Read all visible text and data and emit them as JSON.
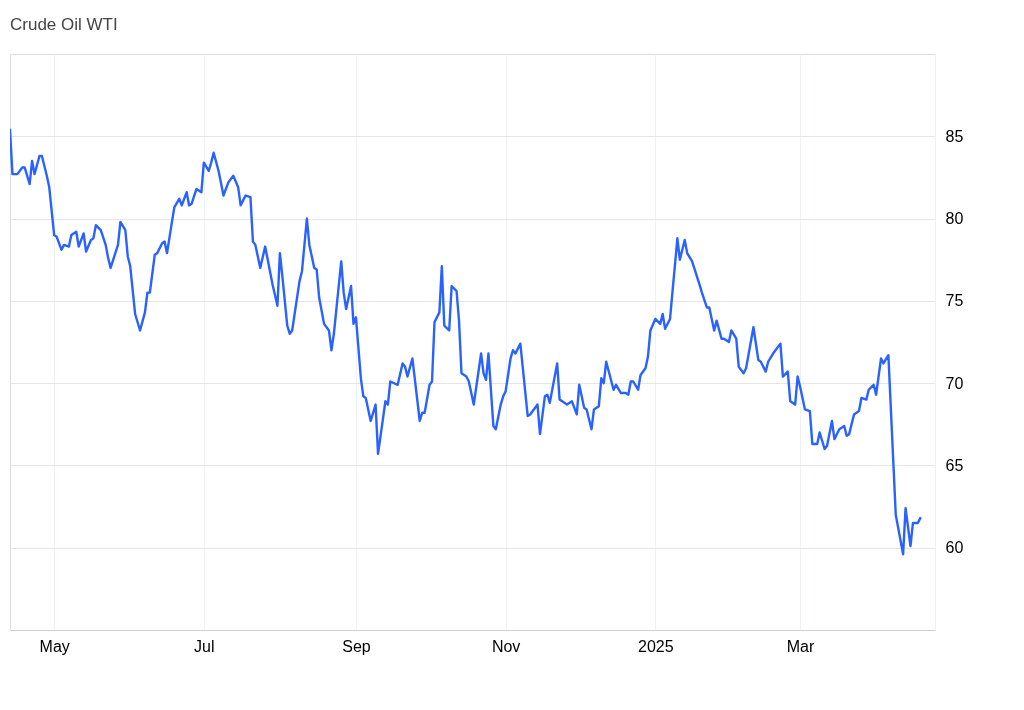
{
  "chart_data": {
    "type": "line",
    "title": "Crude Oil WTI",
    "xlim": [
      "2024-04-13",
      "2025-04-25"
    ],
    "xticks": [
      {
        "value": "2024-05-01",
        "label": "May"
      },
      {
        "value": "2024-07-01",
        "label": "Jul"
      },
      {
        "value": "2024-09-01",
        "label": "Sep"
      },
      {
        "value": "2024-11-01",
        "label": "Nov"
      },
      {
        "value": "2025-01-01",
        "label": "2025"
      },
      {
        "value": "2025-03-01",
        "label": "Mar"
      }
    ],
    "ylim": [
      55,
      90
    ],
    "yticks": [
      60,
      65,
      70,
      75,
      80,
      85
    ],
    "grid": true,
    "legend": false,
    "line_style": "solid",
    "marker": "none",
    "x": [
      "2024-04-13",
      "2024-04-14",
      "2024-04-16",
      "2024-04-18",
      "2024-04-19",
      "2024-04-21",
      "2024-04-22",
      "2024-04-23",
      "2024-04-25",
      "2024-04-26",
      "2024-04-28",
      "2024-04-29",
      "2024-05-01",
      "2024-05-02",
      "2024-05-04",
      "2024-05-05",
      "2024-05-07",
      "2024-05-08",
      "2024-05-10",
      "2024-05-11",
      "2024-05-13",
      "2024-05-14",
      "2024-05-16",
      "2024-05-17",
      "2024-05-18",
      "2024-05-20",
      "2024-05-22",
      "2024-05-23",
      "2024-05-24",
      "2024-05-27",
      "2024-05-28",
      "2024-05-30",
      "2024-05-31",
      "2024-06-01",
      "2024-06-03",
      "2024-06-05",
      "2024-06-07",
      "2024-06-08",
      "2024-06-09",
      "2024-06-11",
      "2024-06-12",
      "2024-06-14",
      "2024-06-15",
      "2024-06-16",
      "2024-06-18",
      "2024-06-19",
      "2024-06-21",
      "2024-06-22",
      "2024-06-24",
      "2024-06-25",
      "2024-06-26",
      "2024-06-28",
      "2024-06-30",
      "2024-07-01",
      "2024-07-03",
      "2024-07-04",
      "2024-07-05",
      "2024-07-07",
      "2024-07-09",
      "2024-07-11",
      "2024-07-13",
      "2024-07-15",
      "2024-07-16",
      "2024-07-18",
      "2024-07-20",
      "2024-07-21",
      "2024-07-22",
      "2024-07-24",
      "2024-07-26",
      "2024-07-29",
      "2024-07-31",
      "2024-08-01",
      "2024-08-02",
      "2024-08-04",
      "2024-08-05",
      "2024-08-06",
      "2024-08-08",
      "2024-08-09",
      "2024-08-10",
      "2024-08-12",
      "2024-08-13",
      "2024-08-15",
      "2024-08-16",
      "2024-08-17",
      "2024-08-19",
      "2024-08-21",
      "2024-08-22",
      "2024-08-23",
      "2024-08-26",
      "2024-08-27",
      "2024-08-28",
      "2024-08-30",
      "2024-08-31",
      "2024-09-01",
      "2024-09-03",
      "2024-09-04",
      "2024-09-05",
      "2024-09-07",
      "2024-09-09",
      "2024-09-10",
      "2024-09-13",
      "2024-09-14",
      "2024-09-15",
      "2024-09-18",
      "2024-09-20",
      "2024-09-21",
      "2024-09-22",
      "2024-09-24",
      "2024-09-27",
      "2024-09-28",
      "2024-09-29",
      "2024-10-01",
      "2024-10-02",
      "2024-10-03",
      "2024-10-05",
      "2024-10-06",
      "2024-10-07",
      "2024-10-09",
      "2024-10-10",
      "2024-10-12",
      "2024-10-13",
      "2024-10-14",
      "2024-10-16",
      "2024-10-17",
      "2024-10-19",
      "2024-10-22",
      "2024-10-23",
      "2024-10-24",
      "2024-10-25",
      "2024-10-27",
      "2024-10-28",
      "2024-10-30",
      "2024-10-31",
      "2024-11-01",
      "2024-11-03",
      "2024-11-04",
      "2024-11-05",
      "2024-11-07",
      "2024-11-10",
      "2024-11-11",
      "2024-11-14",
      "2024-11-15",
      "2024-11-17",
      "2024-11-18",
      "2024-11-19",
      "2024-11-22",
      "2024-11-23",
      "2024-11-26",
      "2024-11-28",
      "2024-11-30",
      "2024-12-01",
      "2024-12-03",
      "2024-12-04",
      "2024-12-06",
      "2024-12-07",
      "2024-12-09",
      "2024-12-10",
      "2024-12-11",
      "2024-12-12",
      "2024-12-15",
      "2024-12-16",
      "2024-12-18",
      "2024-12-20",
      "2024-12-21",
      "2024-12-22",
      "2024-12-23",
      "2024-12-25",
      "2024-12-26",
      "2024-12-28",
      "2024-12-29",
      "2024-12-30",
      "2025-01-01",
      "2025-01-03",
      "2025-01-04",
      "2025-01-05",
      "2025-01-07",
      "2025-01-10",
      "2025-01-11",
      "2025-01-13",
      "2025-01-14",
      "2025-01-16",
      "2025-01-19",
      "2025-01-20",
      "2025-01-22",
      "2025-01-23",
      "2025-01-25",
      "2025-01-26",
      "2025-01-28",
      "2025-01-29",
      "2025-01-31",
      "2025-02-01",
      "2025-02-03",
      "2025-02-04",
      "2025-02-06",
      "2025-02-07",
      "2025-02-10",
      "2025-02-12",
      "2025-02-13",
      "2025-02-15",
      "2025-02-16",
      "2025-02-18",
      "2025-02-21",
      "2025-02-22",
      "2025-02-24",
      "2025-02-25",
      "2025-02-27",
      "2025-02-28",
      "2025-03-01",
      "2025-03-03",
      "2025-03-05",
      "2025-03-06",
      "2025-03-08",
      "2025-03-09",
      "2025-03-11",
      "2025-03-12",
      "2025-03-14",
      "2025-03-15",
      "2025-03-17",
      "2025-03-19",
      "2025-03-20",
      "2025-03-21",
      "2025-03-23",
      "2025-03-25",
      "2025-03-26",
      "2025-03-28",
      "2025-03-29",
      "2025-03-31",
      "2025-04-01",
      "2025-04-03",
      "2025-04-04",
      "2025-04-06",
      "2025-04-09",
      "2025-04-12",
      "2025-04-13",
      "2025-04-15",
      "2025-04-16",
      "2025-04-18",
      "2025-04-19"
    ],
    "series": [
      {
        "color": "#2962ff",
        "values": [
          85.4,
          82.7,
          82.7,
          83.1,
          83.1,
          82.1,
          83.5,
          82.7,
          83.8,
          83.8,
          82.6,
          81.9,
          79.0,
          78.9,
          78.1,
          78.4,
          78.3,
          79.0,
          79.2,
          78.3,
          79.1,
          78.0,
          78.7,
          78.8,
          79.6,
          79.3,
          78.4,
          77.6,
          77.0,
          78.4,
          79.8,
          79.3,
          77.7,
          77.1,
          74.2,
          73.2,
          74.3,
          75.5,
          75.5,
          77.8,
          77.9,
          78.5,
          78.6,
          77.9,
          79.8,
          80.7,
          81.2,
          80.8,
          81.6,
          80.8,
          80.9,
          81.8,
          81.6,
          83.4,
          82.9,
          83.4,
          84.0,
          82.9,
          81.4,
          82.2,
          82.6,
          81.9,
          80.8,
          81.4,
          81.3,
          78.6,
          78.4,
          77.0,
          78.3,
          76.0,
          74.7,
          77.9,
          76.5,
          73.5,
          73.0,
          73.2,
          75.2,
          76.2,
          76.8,
          80.0,
          78.4,
          77.0,
          76.9,
          75.2,
          73.6,
          73.2,
          72.0,
          73.0,
          77.4,
          75.5,
          74.5,
          75.9,
          73.6,
          74.0,
          70.3,
          69.2,
          69.1,
          67.7,
          68.7,
          65.7,
          68.9,
          68.7,
          70.1,
          69.9,
          71.2,
          71.0,
          70.4,
          71.5,
          67.7,
          68.2,
          68.2,
          69.9,
          70.1,
          73.7,
          74.3,
          77.1,
          73.5,
          73.2,
          75.9,
          75.6,
          73.8,
          70.6,
          70.4,
          70.1,
          68.7,
          71.8,
          70.6,
          70.2,
          71.8,
          67.4,
          67.2,
          68.7,
          69.2,
          69.5,
          71.5,
          72.0,
          71.8,
          72.4,
          68.0,
          68.1,
          68.7,
          66.9,
          69.2,
          69.3,
          68.8,
          71.2,
          69.0,
          68.7,
          68.9,
          68.1,
          69.9,
          68.5,
          68.4,
          67.2,
          68.4,
          68.6,
          70.3,
          70.0,
          71.3,
          69.6,
          69.9,
          69.4,
          69.4,
          69.3,
          70.1,
          70.1,
          69.6,
          70.5,
          70.9,
          71.6,
          73.2,
          73.9,
          73.6,
          74.2,
          73.3,
          73.9,
          78.8,
          77.5,
          78.7,
          77.9,
          77.4,
          76.0,
          75.5,
          74.6,
          74.6,
          73.2,
          73.8,
          72.7,
          72.7,
          72.5,
          73.2,
          72.7,
          71.0,
          70.6,
          70.9,
          73.4,
          71.4,
          71.3,
          70.7,
          71.3,
          71.8,
          72.4,
          70.4,
          70.7,
          68.9,
          68.7,
          70.4,
          69.8,
          68.4,
          68.3,
          66.3,
          66.3,
          67.0,
          66.0,
          66.2,
          67.7,
          66.6,
          67.2,
          67.4,
          66.8,
          66.9,
          68.1,
          68.3,
          69.1,
          69.0,
          69.6,
          69.9,
          69.3,
          71.5,
          71.2,
          71.7,
          62.0,
          59.6,
          62.4,
          60.1,
          61.5,
          61.5,
          61.8
        ]
      }
    ]
  }
}
